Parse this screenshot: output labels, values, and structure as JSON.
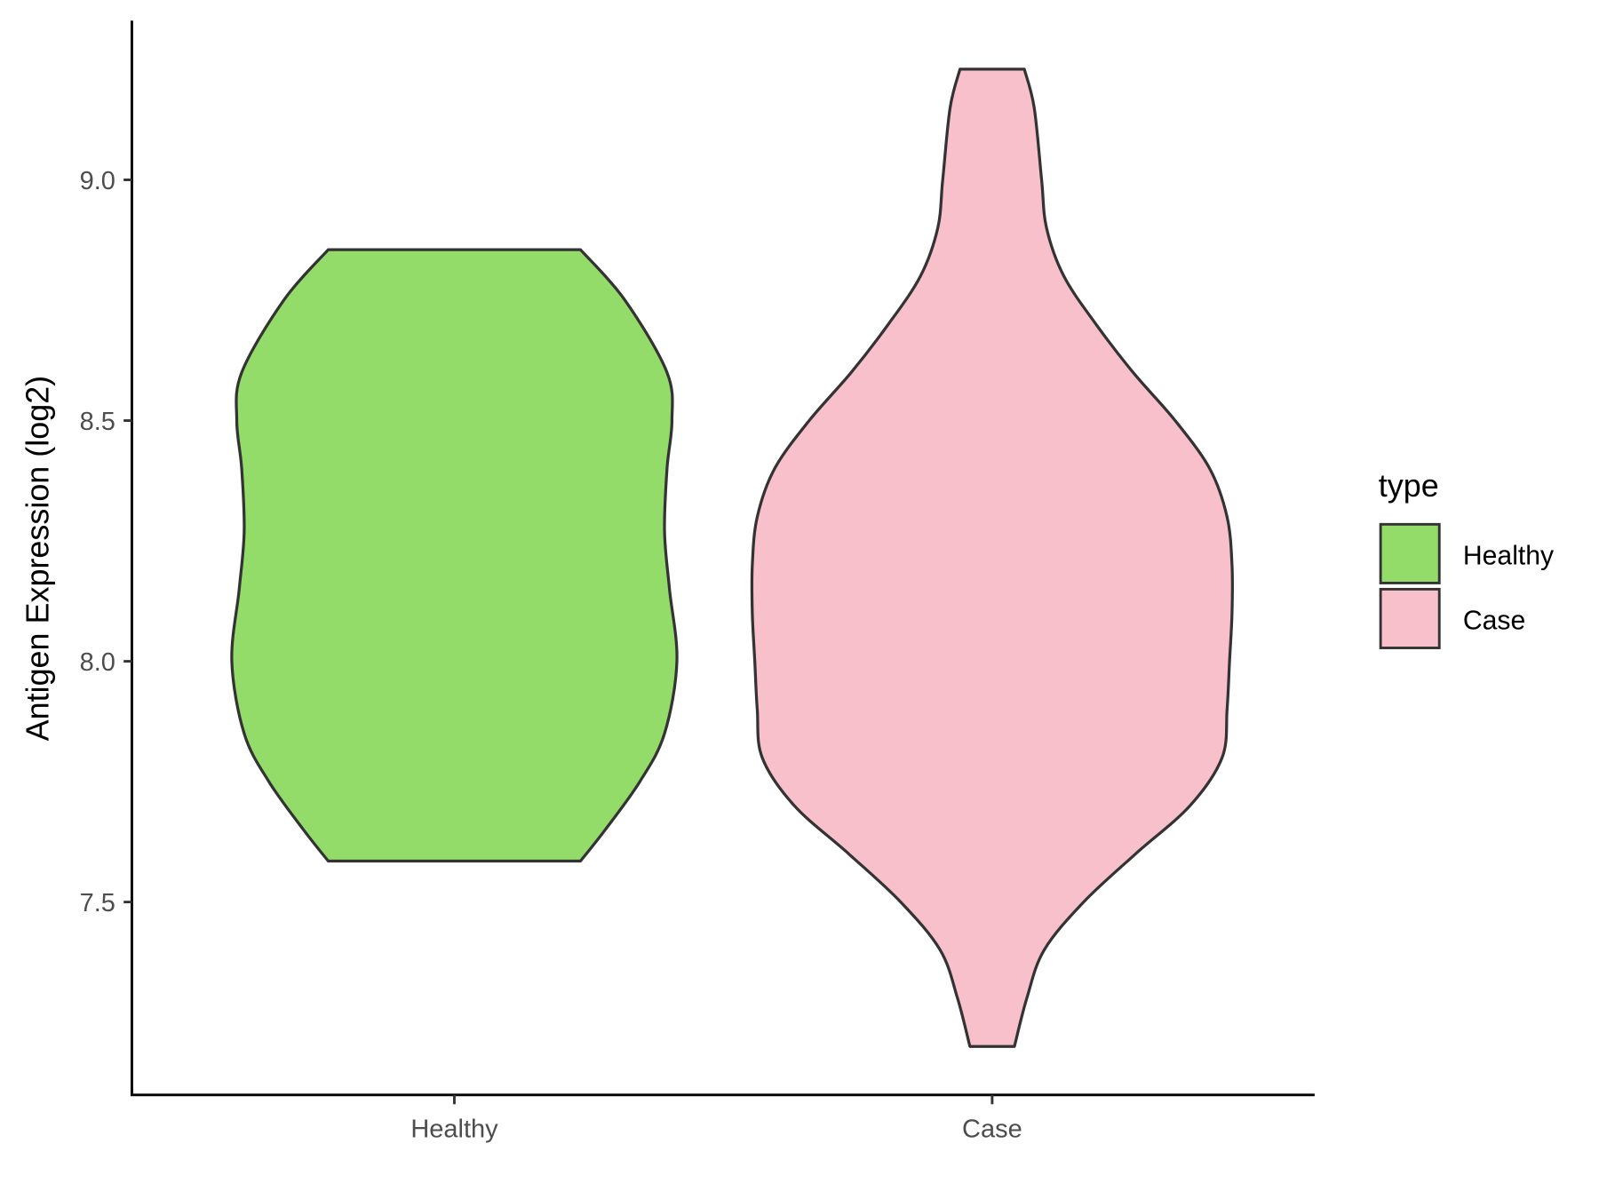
{
  "chart_data": {
    "type": "violin",
    "title": "",
    "xlabel": "",
    "ylabel": "Antigen Expression (log2)",
    "categories": [
      "Healthy",
      "Case"
    ],
    "yticks": [
      7.5,
      8.0,
      8.5,
      9.0
    ],
    "ytick_labels": [
      "7.5",
      "8.0",
      "8.5",
      "9.0"
    ],
    "ylim": [
      7.09,
      9.33
    ],
    "grid": false,
    "legend": {
      "title": "type",
      "placement": "right",
      "entries": [
        "Healthy",
        "Case"
      ]
    },
    "colors": {
      "Healthy": "#93dc6a",
      "Case": "#f8c0cb",
      "outline": "#333333"
    },
    "series": [
      {
        "name": "Healthy",
        "density_profile": [
          [
            8.855,
            0.51
          ],
          [
            8.75,
            0.69
          ],
          [
            8.6,
            0.86
          ],
          [
            8.5,
            0.88
          ],
          [
            8.4,
            0.86
          ],
          [
            8.27,
            0.85
          ],
          [
            8.15,
            0.87
          ],
          [
            8.0,
            0.9
          ],
          [
            7.85,
            0.85
          ],
          [
            7.75,
            0.75
          ],
          [
            7.65,
            0.61
          ],
          [
            7.585,
            0.51
          ]
        ]
      },
      {
        "name": "Case",
        "density_profile": [
          [
            9.23,
            0.13
          ],
          [
            9.15,
            0.17
          ],
          [
            9.0,
            0.2
          ],
          [
            8.9,
            0.22
          ],
          [
            8.8,
            0.29
          ],
          [
            8.7,
            0.42
          ],
          [
            8.6,
            0.57
          ],
          [
            8.5,
            0.74
          ],
          [
            8.4,
            0.88
          ],
          [
            8.3,
            0.95
          ],
          [
            8.2,
            0.97
          ],
          [
            8.1,
            0.97
          ],
          [
            8.0,
            0.96
          ],
          [
            7.9,
            0.95
          ],
          [
            7.8,
            0.93
          ],
          [
            7.7,
            0.8
          ],
          [
            7.6,
            0.58
          ],
          [
            7.5,
            0.37
          ],
          [
            7.4,
            0.21
          ],
          [
            7.3,
            0.14
          ],
          [
            7.2,
            0.09
          ]
        ]
      }
    ]
  }
}
